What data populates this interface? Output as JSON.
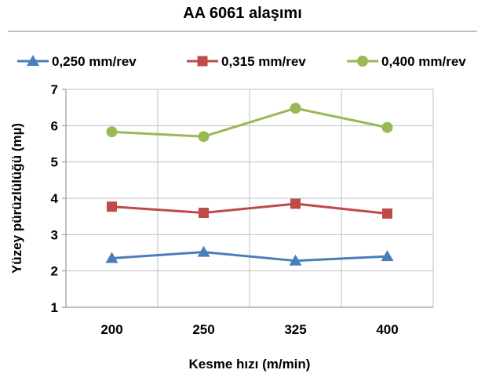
{
  "chart_data": {
    "type": "line",
    "title": "AA 6061  alaşımı",
    "xlabel": "Kesme hızı (m/min)",
    "ylabel": "Yüzey pürüzlülüğü (mµ)",
    "categories": [
      "200",
      "250",
      "325",
      "400"
    ],
    "ylim": [
      1,
      7
    ],
    "yticks": [
      1,
      2,
      3,
      4,
      5,
      6,
      7
    ],
    "grid": true,
    "legend_position": "top",
    "series": [
      {
        "name": "0,250 mm/rev",
        "color": "#4a7ebb",
        "marker": "triangle",
        "values": [
          2.35,
          2.52,
          2.28,
          2.4
        ]
      },
      {
        "name": "0,315 mm/rev",
        "color": "#be4b48",
        "marker": "square",
        "values": [
          3.77,
          3.6,
          3.85,
          3.58
        ]
      },
      {
        "name": "0,400 mm/rev",
        "color": "#98b954",
        "marker": "circle",
        "values": [
          5.83,
          5.7,
          6.48,
          5.95
        ]
      }
    ]
  }
}
